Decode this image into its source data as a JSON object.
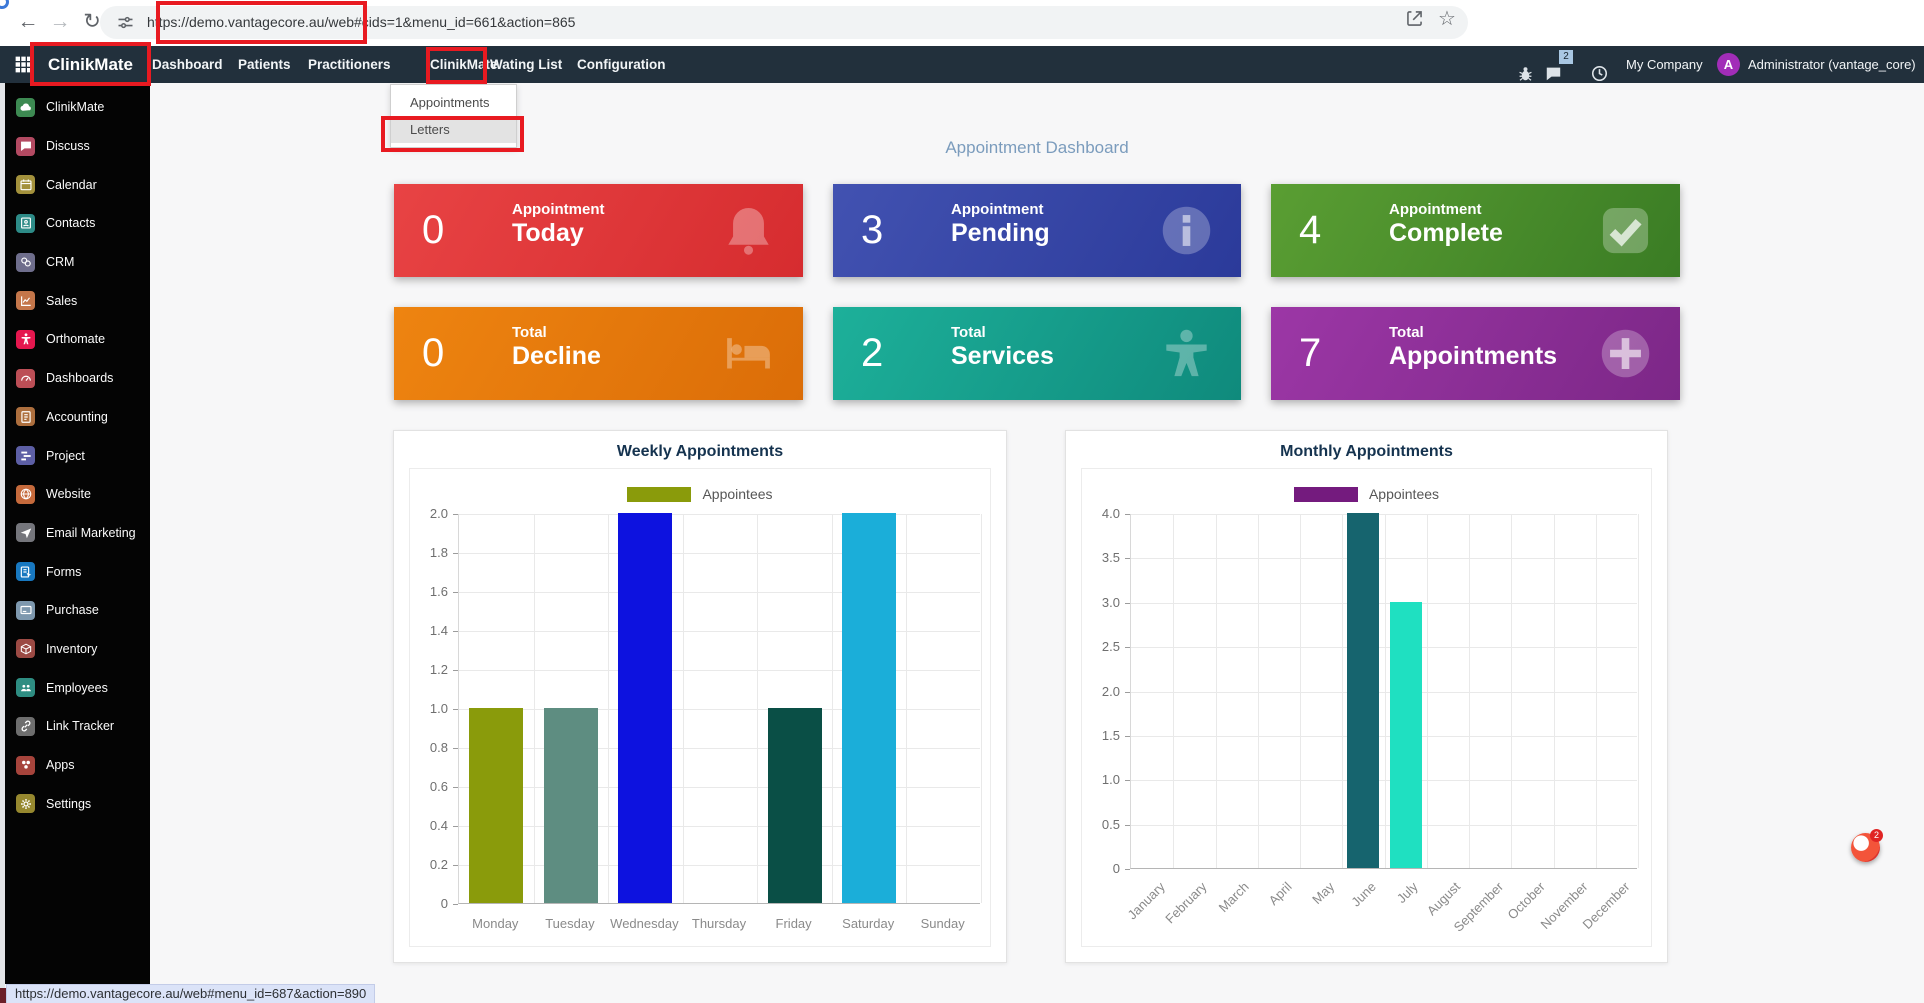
{
  "browser": {
    "url": "https://demo.vantagecore.au/web#cids=1&menu_id=661&action=865",
    "status_url": "https://demo.vantagecore.au/web#menu_id=687&action=890"
  },
  "navbar": {
    "brand": "ClinikMate",
    "items": [
      {
        "label": "Dashboard"
      },
      {
        "label": "Patients"
      },
      {
        "label": "Practitioners"
      },
      {
        "label": "ClinikMate"
      },
      {
        "label": "Wating List"
      },
      {
        "label": "Configuration"
      }
    ],
    "right": {
      "message_count": "2",
      "company": "My Company",
      "avatar_letter": "A",
      "user": "Administrator (vantage_core)"
    }
  },
  "dropdown": {
    "items": [
      {
        "label": "Appointments",
        "highlighted": false
      },
      {
        "label": "Letters",
        "highlighted": true
      }
    ]
  },
  "sidebar": {
    "apps": [
      {
        "label": "ClinikMate",
        "icon": "cloud-icon",
        "color": "#3d8a52"
      },
      {
        "label": "Discuss",
        "icon": "chat-bubble-icon",
        "color": "#b34a62"
      },
      {
        "label": "Calendar",
        "icon": "calendar-icon",
        "color": "#a3913c"
      },
      {
        "label": "Contacts",
        "icon": "address-book-icon",
        "color": "#2d8b87"
      },
      {
        "label": "CRM",
        "icon": "crm-rings-icon",
        "color": "#6f6e8c"
      },
      {
        "label": "Sales",
        "icon": "sales-chart-icon",
        "color": "#c4764a"
      },
      {
        "label": "Orthomate",
        "icon": "person-icon",
        "color": "#e5174e"
      },
      {
        "label": "Dashboards",
        "icon": "gauge-icon",
        "color": "#bc4e56"
      },
      {
        "label": "Accounting",
        "icon": "ledger-icon",
        "color": "#ad6f3e"
      },
      {
        "label": "Project",
        "icon": "kanban-icon",
        "color": "#5d5fa5"
      },
      {
        "label": "Website",
        "icon": "globe-icon",
        "color": "#c56a3c"
      },
      {
        "label": "Email Marketing",
        "icon": "paper-plane-icon",
        "color": "#75767c"
      },
      {
        "label": "Forms",
        "icon": "form-icon",
        "color": "#1878c0"
      },
      {
        "label": "Purchase",
        "icon": "credit-card-icon",
        "color": "#7e98ae"
      },
      {
        "label": "Inventory",
        "icon": "box-icon",
        "color": "#9c4a44"
      },
      {
        "label": "Employees",
        "icon": "people-icon",
        "color": "#2e8d82"
      },
      {
        "label": "Link Tracker",
        "icon": "link-icon",
        "color": "#6e6e6e"
      },
      {
        "label": "Apps",
        "icon": "shapes-icon",
        "color": "#a6443c"
      },
      {
        "label": "Settings",
        "icon": "gear-icon",
        "color": "#96882f"
      }
    ]
  },
  "dashboard": {
    "title": "Appointment Dashboard",
    "cards": [
      {
        "value": "0",
        "line1": "Appointment",
        "line2": "Today",
        "icon": "bell-icon",
        "color_from": "#e84344",
        "color_to": "#d62c2f"
      },
      {
        "value": "3",
        "line1": "Appointment",
        "line2": "Pending",
        "icon": "info-icon",
        "color_from": "#4252b1",
        "color_to": "#2b3a9a"
      },
      {
        "value": "4",
        "line1": "Appointment",
        "line2": "Complete",
        "icon": "check-icon",
        "color_from": "#5a9e33",
        "color_to": "#3a7c24"
      },
      {
        "value": "0",
        "line1": "Total",
        "line2": "Decline",
        "icon": "bed-icon",
        "color_from": "#ee8410",
        "color_to": "#db6d08"
      },
      {
        "value": "2",
        "line1": "Total",
        "line2": "Services",
        "icon": "child-icon",
        "color_from": "#1db09a",
        "color_to": "#0f8a7c"
      },
      {
        "value": "7",
        "line1": "Total",
        "line2": "Appointments",
        "icon": "plus-icon",
        "color_from": "#9c37a6",
        "color_to": "#7c2787"
      }
    ]
  },
  "chart_data": [
    {
      "type": "bar",
      "title": "Weekly Appointments",
      "legend": [
        {
          "label": "Appointees",
          "color": "#8a9b0b"
        }
      ],
      "legend_position": "top",
      "categories": [
        "Monday",
        "Tuesday",
        "Wednesday",
        "Thursday",
        "Friday",
        "Saturday",
        "Sunday"
      ],
      "values": [
        1,
        1,
        2,
        0,
        1,
        2,
        0
      ],
      "bar_colors": [
        "#8a9b0b",
        "#5e8d81",
        "#0d12df",
        "#8a9b0b",
        "#0a4f46",
        "#1baed9",
        "#8a9b0b"
      ],
      "xlabel": "",
      "ylabel": "",
      "ylim": [
        0,
        2.0
      ],
      "ytick_step": 0.2,
      "xlabel_rotation": 0,
      "grid": true
    },
    {
      "type": "bar",
      "title": "Monthly Appointments",
      "legend": [
        {
          "label": "Appointees",
          "color": "#741b7e"
        }
      ],
      "legend_position": "top",
      "categories": [
        "January",
        "February",
        "March",
        "April",
        "May",
        "June",
        "July",
        "August",
        "September",
        "October",
        "November",
        "December"
      ],
      "values": [
        0,
        0,
        0,
        0,
        0,
        4,
        3,
        0,
        0,
        0,
        0,
        0
      ],
      "bar_colors": [
        "#16646e",
        "#16646e",
        "#16646e",
        "#16646e",
        "#16646e",
        "#16646e",
        "#1fe0c1",
        "#16646e",
        "#16646e",
        "#16646e",
        "#16646e",
        "#16646e"
      ],
      "xlabel": "",
      "ylabel": "",
      "ylim": [
        0,
        4.0
      ],
      "ytick_step": 0.5,
      "xlabel_rotation": 45,
      "grid": true
    }
  ],
  "chat_widget": {
    "badge": "2"
  }
}
